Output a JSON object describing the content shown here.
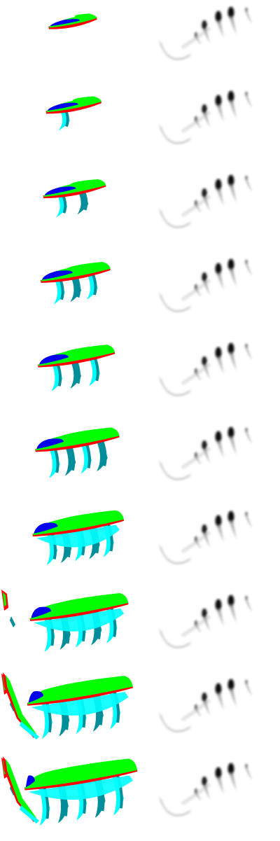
{
  "figure": {
    "rows": 10,
    "columns": [
      "color-coded-segmentation",
      "grayscale-density-map"
    ],
    "palette": {
      "blue": "#0000ee",
      "green": "#00ff00",
      "red": "#ff0000",
      "cyan": "#00ffff",
      "teal": "#008f9a",
      "black": "#000000",
      "white": "#ffffff"
    }
  }
}
